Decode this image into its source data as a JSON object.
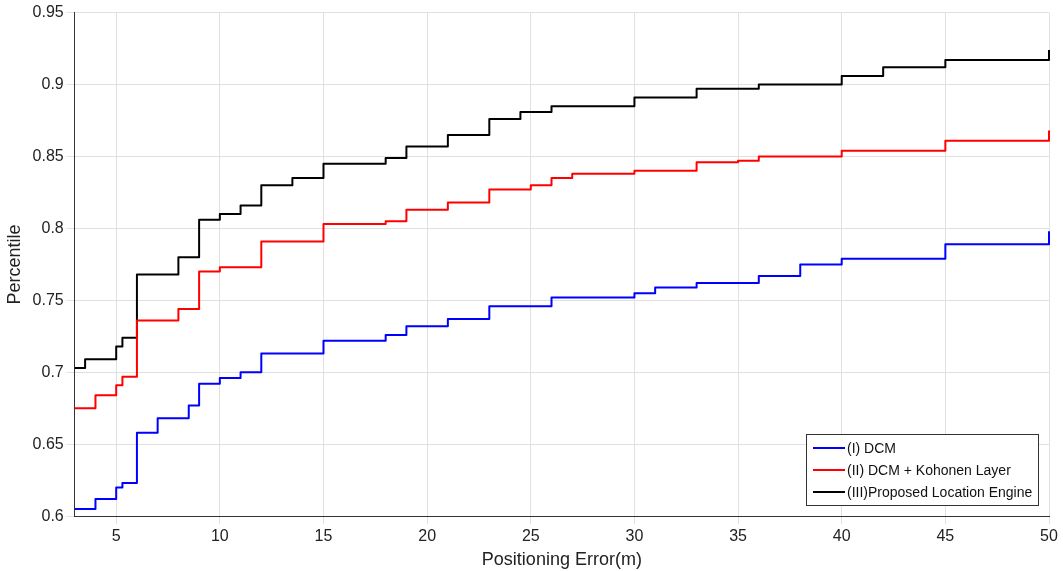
{
  "chart_data": {
    "type": "step",
    "xlabel": "Positioning Error(m)",
    "ylabel": "Percentile",
    "xlim": [
      3,
      50
    ],
    "xticks": [
      5,
      10,
      15,
      20,
      25,
      30,
      35,
      40,
      45,
      50
    ],
    "ylim": [
      0.6,
      0.95
    ],
    "yticks": [
      0.6,
      0.65,
      0.7,
      0.75,
      0.8,
      0.85,
      0.9,
      0.95
    ],
    "grid": true,
    "legend": "bottom right",
    "series": [
      {
        "name": "(I) DCM",
        "color": "#0000ff",
        "x": [
          3,
          4,
          5,
          5.3,
          6,
          6,
          7,
          8.5,
          9,
          9,
          10,
          11,
          12,
          12,
          15,
          15,
          18,
          19,
          21,
          23,
          23,
          26,
          30,
          31,
          33,
          36,
          38,
          40,
          45,
          50
        ],
        "values": [
          0.605,
          0.612,
          0.62,
          0.623,
          0.631,
          0.658,
          0.668,
          0.677,
          0.677,
          0.692,
          0.696,
          0.7,
          0.703,
          0.713,
          0.716,
          0.722,
          0.726,
          0.732,
          0.737,
          0.742,
          0.746,
          0.752,
          0.755,
          0.759,
          0.762,
          0.767,
          0.775,
          0.779,
          0.789,
          0.798
        ]
      },
      {
        "name": "(II) DCM + Kohonen Layer",
        "color": "#ff0000",
        "x": [
          3,
          4,
          5,
          5.3,
          6,
          6,
          8,
          9,
          9,
          10,
          12,
          12,
          15,
          15,
          18,
          19,
          21,
          23,
          23,
          25,
          26,
          27,
          30,
          33,
          35,
          36,
          40,
          45,
          50
        ],
        "values": [
          0.675,
          0.684,
          0.691,
          0.697,
          0.706,
          0.736,
          0.744,
          0.755,
          0.77,
          0.773,
          0.78,
          0.791,
          0.795,
          0.803,
          0.805,
          0.813,
          0.818,
          0.822,
          0.827,
          0.83,
          0.835,
          0.838,
          0.84,
          0.846,
          0.847,
          0.85,
          0.854,
          0.861,
          0.868
        ]
      },
      {
        "name": "(III)Proposed Location Engine",
        "color": "#000000",
        "x": [
          3,
          3.5,
          5,
          5.3,
          6,
          6,
          8,
          9,
          9,
          10,
          11,
          12,
          12,
          13.5,
          15,
          15,
          18,
          19,
          21,
          23,
          23,
          24.5,
          26,
          30,
          30,
          33,
          36,
          40,
          42,
          45,
          50
        ],
        "values": [
          0.703,
          0.709,
          0.718,
          0.724,
          0.735,
          0.768,
          0.78,
          0.789,
          0.806,
          0.81,
          0.816,
          0.818,
          0.83,
          0.835,
          0.837,
          0.845,
          0.849,
          0.857,
          0.865,
          0.87,
          0.876,
          0.881,
          0.885,
          0.887,
          0.891,
          0.897,
          0.9,
          0.906,
          0.912,
          0.917,
          0.924
        ]
      }
    ]
  }
}
